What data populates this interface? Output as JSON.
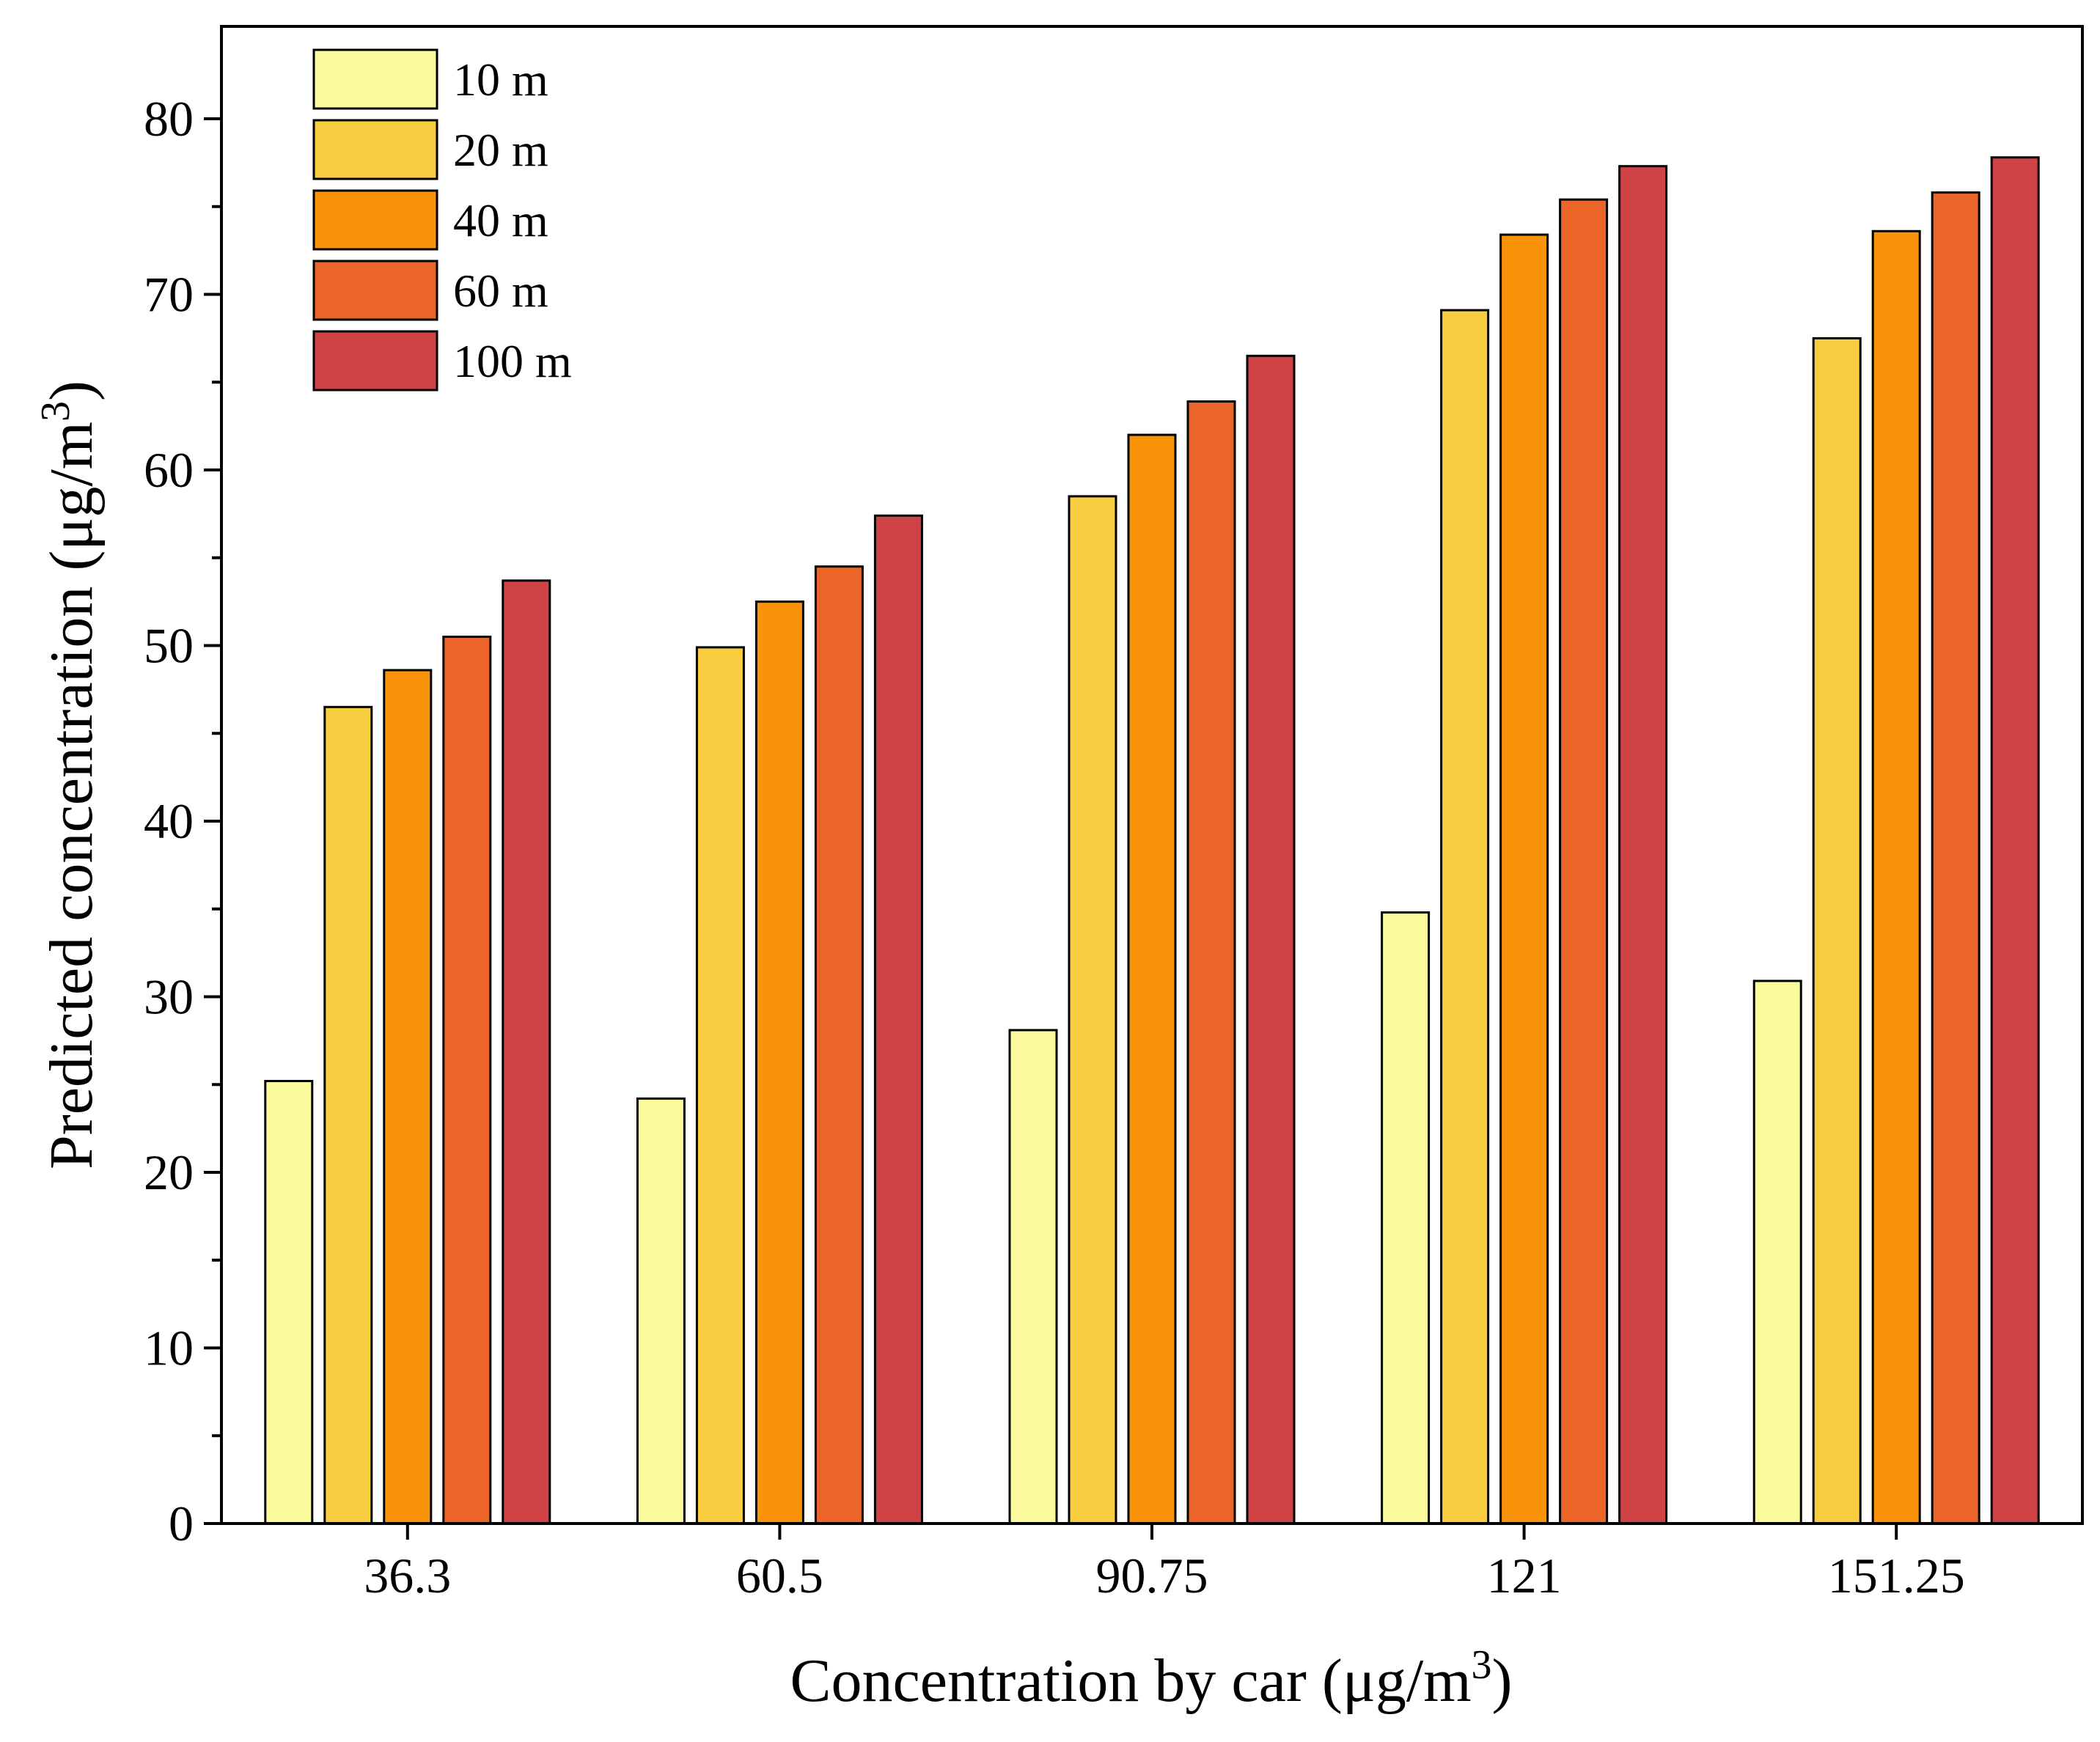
{
  "chart_data": {
    "type": "bar",
    "title": "",
    "categories": [
      "36.3",
      "60.5",
      "90.75",
      "121",
      "151.25"
    ],
    "series": [
      {
        "name": "10 m",
        "color": "#fbfb9e",
        "values": [
          25.2,
          24.2,
          28.1,
          34.8,
          30.9
        ]
      },
      {
        "name": "20 m",
        "color": "#f8cd3f",
        "values": [
          46.5,
          49.9,
          58.5,
          69.1,
          67.5
        ]
      },
      {
        "name": "40 m",
        "color": "#f8930a",
        "values": [
          48.6,
          52.5,
          62.0,
          73.4,
          73.6
        ]
      },
      {
        "name": "60 m",
        "color": "#ea6527",
        "values": [
          50.5,
          54.5,
          63.9,
          75.4,
          75.8
        ]
      },
      {
        "name": "100 m",
        "color": "#cf4346",
        "values": [
          53.7,
          57.4,
          66.5,
          77.3,
          77.8
        ]
      }
    ],
    "xlabel": {
      "main": "Concentration by car (μg/m",
      "sup": "3",
      "tail": ")"
    },
    "ylabel": {
      "main": "Predicted concentration (μg/m",
      "sup": "3",
      "tail": ")"
    },
    "ylim": [
      0,
      85
    ],
    "yticks": [
      "0",
      "10",
      "20",
      "30",
      "40",
      "50",
      "60",
      "70",
      "80"
    ],
    "legend_position": "top-left",
    "grid": false
  }
}
